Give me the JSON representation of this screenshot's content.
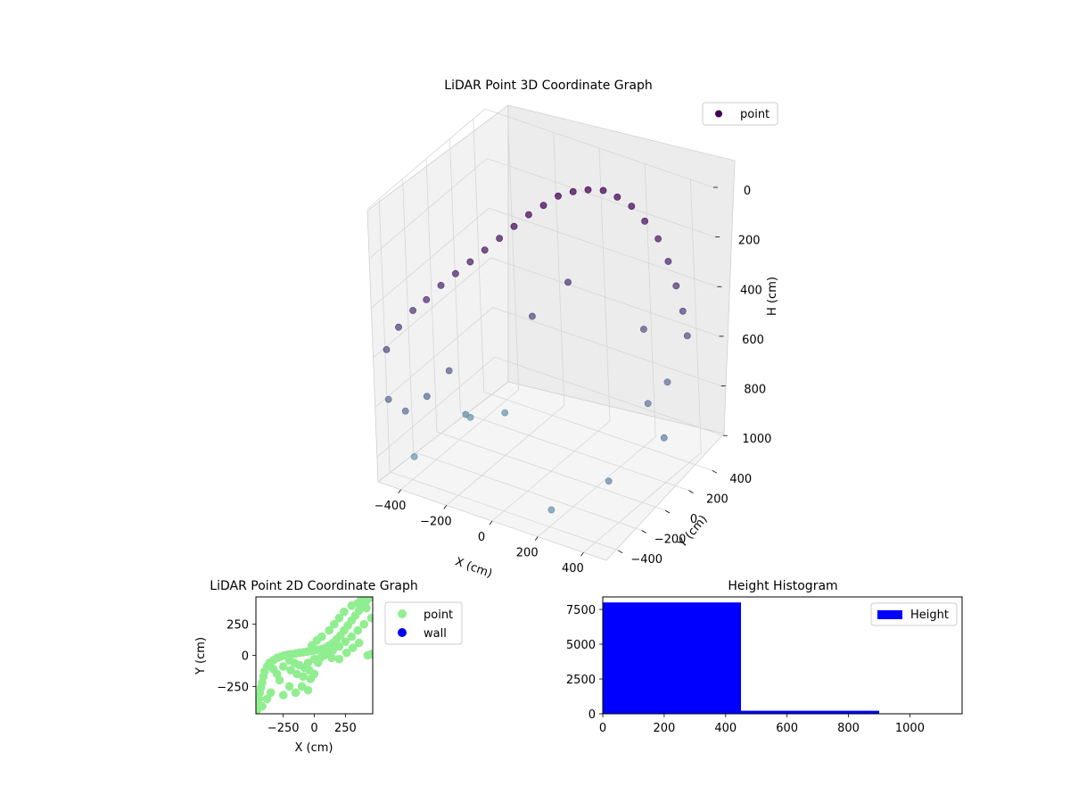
{
  "chart_data": [
    {
      "type": "scatter",
      "projection": "3d",
      "title": "LiDAR Point 3D Coordinate Graph",
      "xlabel": "X (cm)",
      "ylabel": "Y (cm)",
      "zlabel": "H (cm)",
      "xlim": [
        -500,
        500
      ],
      "ylim": [
        -500,
        500
      ],
      "zlim": [
        1100,
        0
      ],
      "x_ticks": [
        "−400",
        "−200",
        "0",
        "200",
        "400"
      ],
      "y_ticks": [
        "−400",
        "−200",
        "0",
        "200",
        "400"
      ],
      "z_ticks": [
        "0",
        "200",
        "400",
        "600",
        "800",
        "1000"
      ],
      "legend": {
        "location": "top-right",
        "entries": [
          "point"
        ]
      },
      "grid": true,
      "series": [
        {
          "name": "point",
          "color_low": "#440154",
          "color_high": "#6f9bb0",
          "note_points": "point cloud of roughly 8,000 returns forming an arch; samples listed as [x, y, h]",
          "samples": [
            [
              -450,
              -480,
              560
            ],
            [
              -420,
              -430,
              480
            ],
            [
              -380,
              -380,
              420
            ],
            [
              -340,
              -340,
              380
            ],
            [
              -300,
              -290,
              330
            ],
            [
              -260,
              -240,
              290
            ],
            [
              -220,
              -190,
              250
            ],
            [
              -180,
              -140,
              210
            ],
            [
              -140,
              -90,
              170
            ],
            [
              -100,
              -40,
              130
            ],
            [
              -60,
              10,
              90
            ],
            [
              -20,
              60,
              60
            ],
            [
              20,
              110,
              30
            ],
            [
              60,
              160,
              20
            ],
            [
              100,
              210,
              20
            ],
            [
              140,
              260,
              30
            ],
            [
              180,
              300,
              60
            ],
            [
              220,
              340,
              100
            ],
            [
              260,
              370,
              160
            ],
            [
              300,
              400,
              230
            ],
            [
              330,
              420,
              320
            ],
            [
              350,
              440,
              420
            ],
            [
              370,
              450,
              520
            ],
            [
              380,
              460,
              620
            ],
            [
              -450,
              -480,
              760
            ],
            [
              -420,
              -400,
              830
            ],
            [
              -360,
              -330,
              780
            ],
            [
              -300,
              -250,
              690
            ],
            [
              -100,
              80,
              540
            ],
            [
              0,
              200,
              420
            ],
            [
              220,
              400,
              620
            ],
            [
              300,
              430,
              820
            ],
            [
              -380,
              20,
              1000
            ],
            [
              -470,
              -250,
              1090
            ],
            [
              -430,
              150,
              1080
            ],
            [
              -330,
              250,
              1070
            ],
            [
              200,
              -380,
              1040
            ],
            [
              330,
              -140,
              980
            ],
            [
              400,
              200,
              920
            ],
            [
              280,
              300,
              860
            ]
          ]
        }
      ]
    },
    {
      "type": "scatter",
      "title": "LiDAR Point 2D Coordinate Graph",
      "xlabel": "X (cm)",
      "ylabel": "Y (cm)",
      "xlim": [
        -470,
        470
      ],
      "ylim": [
        -470,
        470
      ],
      "x_ticks": [
        -250,
        0,
        250
      ],
      "y_ticks": [
        250,
        0,
        -250
      ],
      "x_tick_labels": [
        "−250",
        "0",
        "250"
      ],
      "y_tick_labels": [
        "250",
        "0",
        "−250"
      ],
      "legend": {
        "location": "outside-right",
        "entries": [
          "point",
          "wall"
        ]
      },
      "series": [
        {
          "name": "point",
          "color": "#90ee90",
          "points": [
            [
              -460,
              -440
            ],
            [
              -450,
              -400
            ],
            [
              -445,
              -350
            ],
            [
              -440,
              -300
            ],
            [
              -430,
              -260
            ],
            [
              -420,
              -220
            ],
            [
              -410,
              -170
            ],
            [
              -400,
              -130
            ],
            [
              -380,
              -90
            ],
            [
              -360,
              -60
            ],
            [
              -330,
              -40
            ],
            [
              -300,
              -20
            ],
            [
              -270,
              -10
            ],
            [
              -240,
              0
            ],
            [
              -210,
              5
            ],
            [
              -180,
              10
            ],
            [
              -150,
              15
            ],
            [
              -120,
              20
            ],
            [
              -90,
              25
            ],
            [
              -60,
              30
            ],
            [
              -30,
              35
            ],
            [
              0,
              40
            ],
            [
              30,
              45
            ],
            [
              60,
              50
            ],
            [
              90,
              60
            ],
            [
              120,
              80
            ],
            [
              150,
              100
            ],
            [
              180,
              130
            ],
            [
              210,
              160
            ],
            [
              240,
              200
            ],
            [
              270,
              240
            ],
            [
              300,
              280
            ],
            [
              330,
              320
            ],
            [
              360,
              360
            ],
            [
              390,
              400
            ],
            [
              420,
              440
            ],
            [
              440,
              460
            ],
            [
              -200,
              -40
            ],
            [
              -160,
              -60
            ],
            [
              -120,
              -80
            ],
            [
              -80,
              -100
            ],
            [
              -40,
              -120
            ],
            [
              0,
              -150
            ],
            [
              -50,
              -60
            ],
            [
              0,
              -30
            ],
            [
              50,
              -20
            ],
            [
              100,
              10
            ],
            [
              150,
              40
            ],
            [
              200,
              70
            ],
            [
              250,
              110
            ],
            [
              300,
              150
            ],
            [
              350,
              200
            ],
            [
              400,
              250
            ],
            [
              -300,
              -150
            ],
            [
              -280,
              -200
            ],
            [
              -350,
              -300
            ],
            [
              -380,
              -350
            ],
            [
              -420,
              -410
            ],
            [
              -150,
              -300
            ],
            [
              -100,
              -250
            ],
            [
              -50,
              -280
            ],
            [
              -200,
              -250
            ],
            [
              -250,
              -320
            ],
            [
              120,
              200
            ],
            [
              160,
              250
            ],
            [
              200,
              300
            ],
            [
              240,
              350
            ],
            [
              300,
              400
            ],
            [
              350,
              420
            ],
            [
              380,
              460
            ],
            [
              420,
              380
            ],
            [
              460,
              300
            ],
            [
              430,
              0
            ],
            [
              460,
              10
            ],
            [
              20,
              120
            ],
            [
              60,
              150
            ],
            [
              -20,
              80
            ],
            [
              80,
              0
            ],
            [
              140,
              -20
            ],
            [
              200,
              -30
            ],
            [
              260,
              20
            ],
            [
              310,
              60
            ],
            [
              360,
              100
            ],
            [
              -330,
              -110
            ],
            [
              -250,
              -90
            ],
            [
              -190,
              -120
            ],
            [
              -140,
              -150
            ],
            [
              -90,
              -170
            ],
            [
              -30,
              -190
            ],
            [
              30,
              -60
            ]
          ]
        },
        {
          "name": "wall",
          "color": "#0000ee",
          "points": []
        }
      ]
    },
    {
      "type": "bar",
      "title": "Height Histogram",
      "xlim": [
        0,
        1170
      ],
      "ylim": [
        0,
        8400
      ],
      "x_ticks": [
        0,
        200,
        400,
        600,
        800,
        1000
      ],
      "y_ticks": [
        0,
        2500,
        5000,
        7500
      ],
      "legend": {
        "location": "top-right",
        "entries": [
          "Height"
        ]
      },
      "series": [
        {
          "name": "Height",
          "color": "#0000ff",
          "bins": [
            {
              "from": 0,
              "to": 450,
              "count": 8000
            },
            {
              "from": 450,
              "to": 900,
              "count": 220
            },
            {
              "from": 900,
              "to": 1170,
              "count": 5
            }
          ]
        }
      ]
    }
  ]
}
